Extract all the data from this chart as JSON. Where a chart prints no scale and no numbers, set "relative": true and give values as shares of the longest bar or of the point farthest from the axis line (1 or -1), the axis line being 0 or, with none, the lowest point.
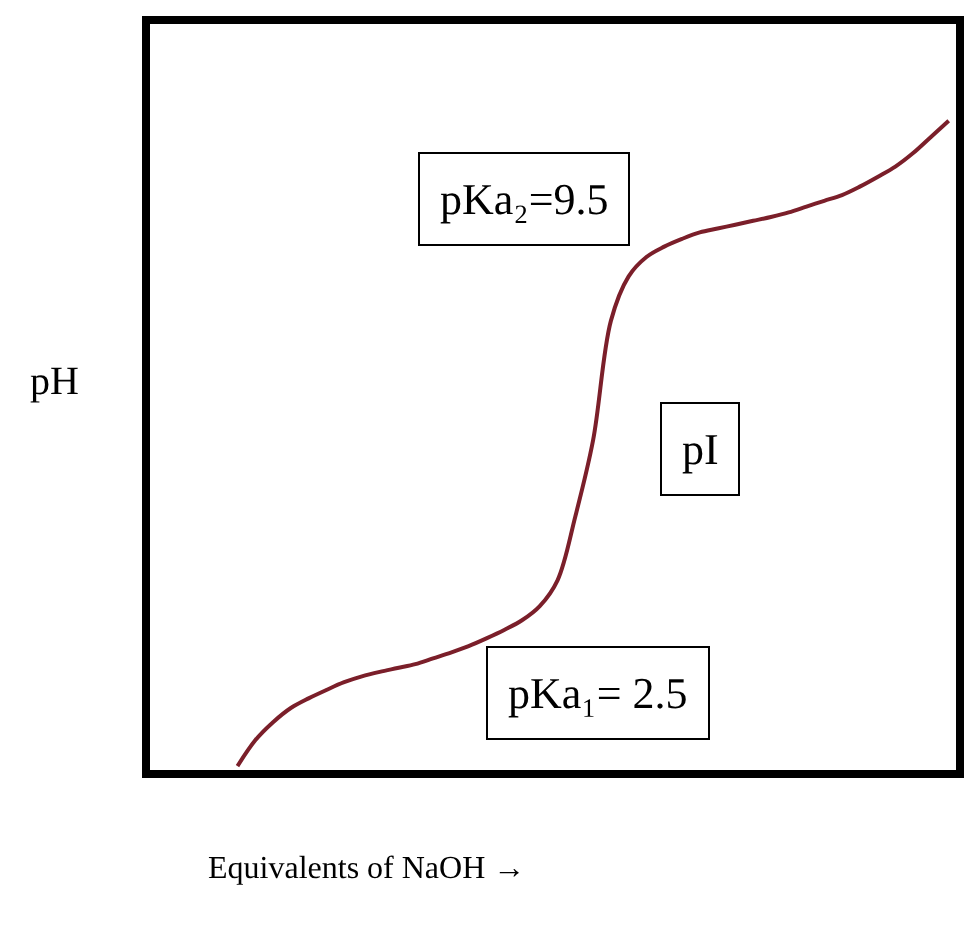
{
  "chart_data": {
    "type": "line",
    "relative": true,
    "xlabel": "Equivalents of NaOH →",
    "ylabel": "pH",
    "annotations": [
      "pKa₂=9.5",
      "pI",
      "pKa₁= 2.5"
    ],
    "categories": [
      null,
      null,
      null,
      null,
      null,
      null,
      null,
      null,
      null,
      null,
      null,
      null,
      null,
      null,
      null,
      null,
      null,
      null,
      null,
      null,
      null,
      null,
      null,
      null,
      null,
      null,
      null,
      null,
      null,
      null,
      null,
      null,
      null,
      null,
      null,
      null,
      null,
      null,
      null,
      null,
      null
    ],
    "series": [
      {
        "color": "#7b1f2a",
        "values": [
          0,
          0.04,
          0.068,
          0.09,
          0.105,
          0.118,
          0.13,
          0.139,
          0.146,
          0.152,
          0.158,
          0.167,
          0.176,
          0.186,
          0.198,
          0.211,
          0.226,
          0.248,
          0.288,
          0.387,
          0.505,
          0.69,
          0.759,
          0.789,
          0.805,
          0.817,
          0.827,
          0.833,
          0.839,
          0.845,
          0.851,
          0.858,
          0.867,
          0.876,
          0.885,
          0.898,
          0.913,
          0.929,
          0.95,
          0.975,
          1
        ]
      }
    ],
    "marker": "none",
    "line_style": "solid"
  }
}
